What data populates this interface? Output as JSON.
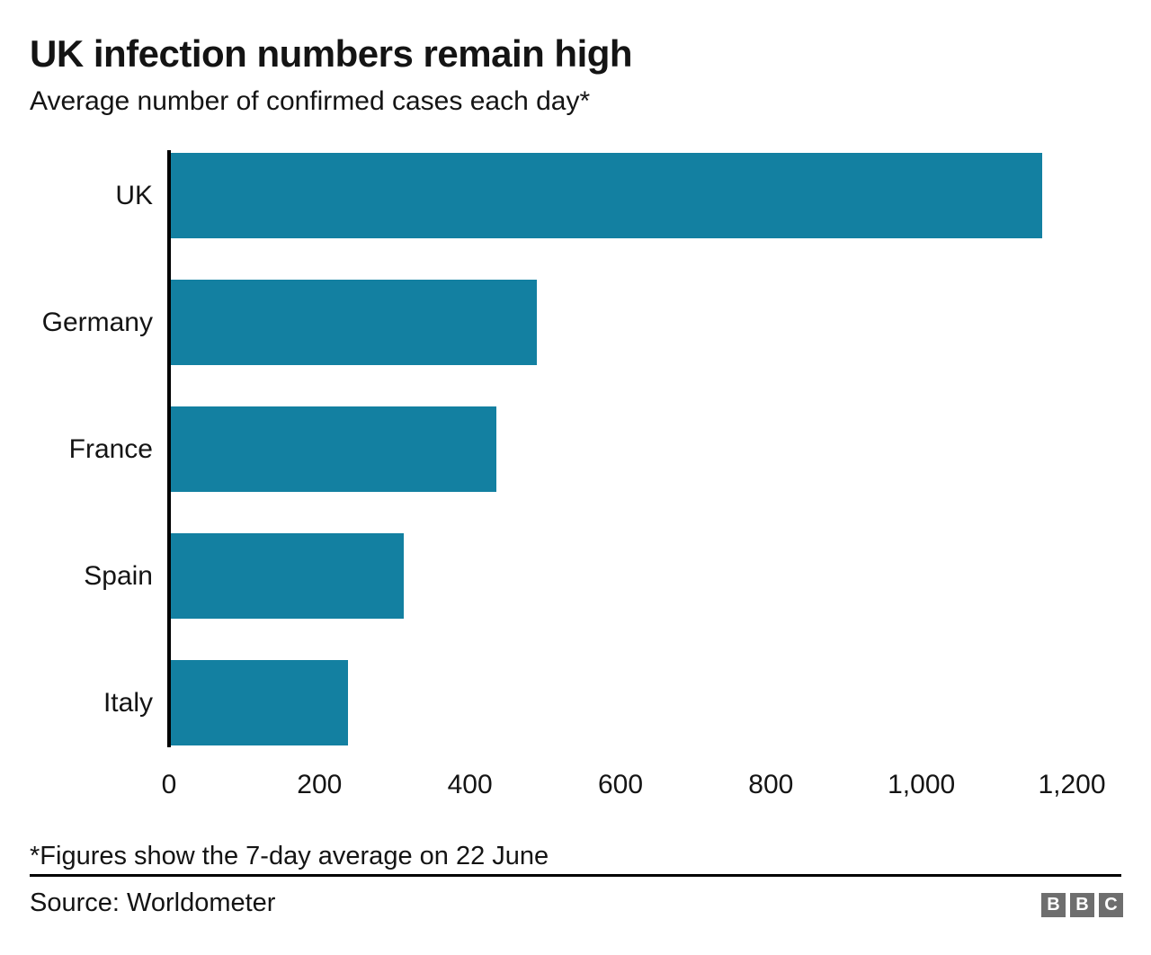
{
  "chart_data": {
    "type": "bar",
    "orientation": "horizontal",
    "title": "UK infection numbers remain high",
    "subtitle": "Average number of confirmed cases each day*",
    "categories": [
      "UK",
      "Germany",
      "France",
      "Spain",
      "Italy"
    ],
    "values": [
      1158,
      486,
      433,
      310,
      236
    ],
    "xlabel": "",
    "ylabel": "",
    "xlim": [
      0,
      1200
    ],
    "x_ticks": [
      0,
      200,
      400,
      600,
      800,
      1000,
      1200
    ],
    "x_tick_labels": [
      "0",
      "200",
      "400",
      "600",
      "800",
      "1,000",
      "1,200"
    ],
    "grid": false,
    "legend": "none",
    "bar_color": "#1380A1",
    "axis_color": "#000000",
    "footnote": "*Figures show the 7-day average on 22 June",
    "source": "Source: Worldometer"
  },
  "branding": {
    "logo_letters": [
      "B",
      "B",
      "C"
    ],
    "logo_block_color": "#6E6E6E",
    "logo_letter_color": "#FFFFFF"
  }
}
